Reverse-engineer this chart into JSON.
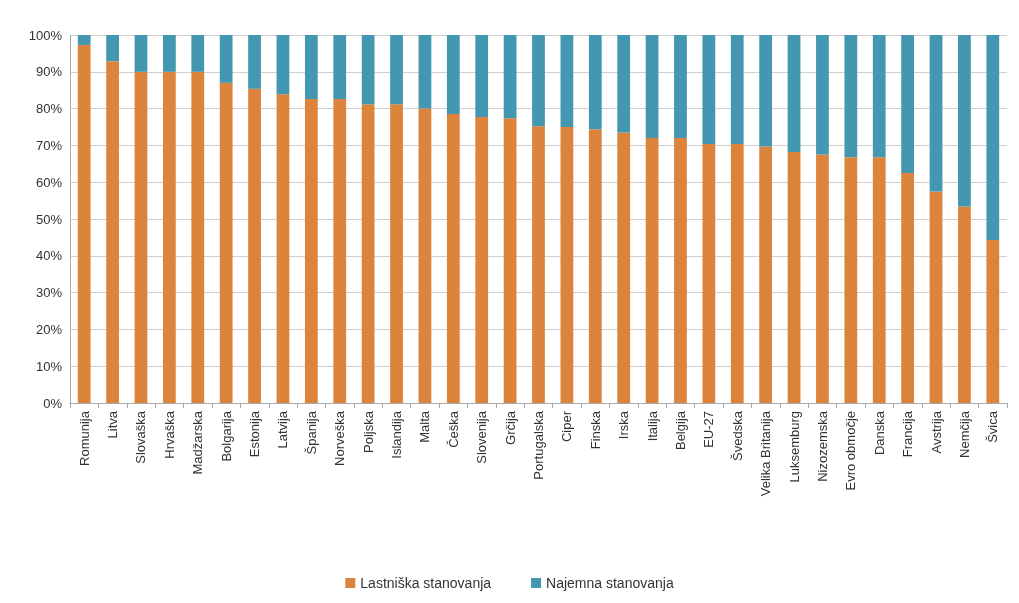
{
  "chart_data": {
    "type": "bar",
    "stacked": true,
    "categories": [
      "Romunija",
      "Litva",
      "Slovaška",
      "Hrvaška",
      "Madžarska",
      "Bolgarija",
      "Estonija",
      "Latvija",
      "Španija",
      "Norveška",
      "Poljska",
      "Islandija",
      "Malta",
      "Češka",
      "Slovenija",
      "Grčija",
      "Portugalska",
      "Ciper",
      "Finska",
      "Irska",
      "Italija",
      "Belgija",
      "EU-27",
      "Švedska",
      "Velika Britanija",
      "Luksemburg",
      "Nizozemska",
      "Evro območje",
      "Danska",
      "Francija",
      "Avstrija",
      "Nemčija",
      "Švica"
    ],
    "series": [
      {
        "name": "Lastniška stanovanja",
        "color": "#dc843c",
        "values": [
          97.3,
          92.9,
          90,
          90,
          90,
          87,
          85.4,
          83.9,
          82.6,
          82.6,
          81.2,
          81.2,
          80,
          78.5,
          77.7,
          77.4,
          75.2,
          75,
          74.4,
          73.5,
          72,
          72,
          70.4,
          70.4,
          69.7,
          68.2,
          67.5,
          66.8,
          66.8,
          62.5,
          57.5,
          53.4,
          44.3
        ]
      },
      {
        "name": "Najemna stanovanja",
        "color": "#4497b0",
        "values": [
          2.7,
          7.1,
          10,
          10,
          10,
          13,
          14.6,
          16.1,
          17.4,
          17.4,
          18.8,
          18.8,
          20,
          21.5,
          22.3,
          22.6,
          24.8,
          25,
          25.6,
          26.5,
          28,
          28,
          29.6,
          29.6,
          30.3,
          31.8,
          32.5,
          33.2,
          33.2,
          37.5,
          42.5,
          46.6,
          55.7
        ]
      }
    ],
    "ylim": [
      0,
      100
    ],
    "yticks": [
      {
        "value": 0,
        "label": "0%"
      },
      {
        "value": 10,
        "label": "10%"
      },
      {
        "value": 20,
        "label": "20%"
      },
      {
        "value": 30,
        "label": "30%"
      },
      {
        "value": 40,
        "label": "40%"
      },
      {
        "value": 50,
        "label": "50%"
      },
      {
        "value": 60,
        "label": "60%"
      },
      {
        "value": 70,
        "label": "70%"
      },
      {
        "value": 80,
        "label": "80%"
      },
      {
        "value": 90,
        "label": "90%"
      },
      {
        "value": 100,
        "label": "100%"
      }
    ],
    "grid": "y",
    "legend": "bottom"
  }
}
